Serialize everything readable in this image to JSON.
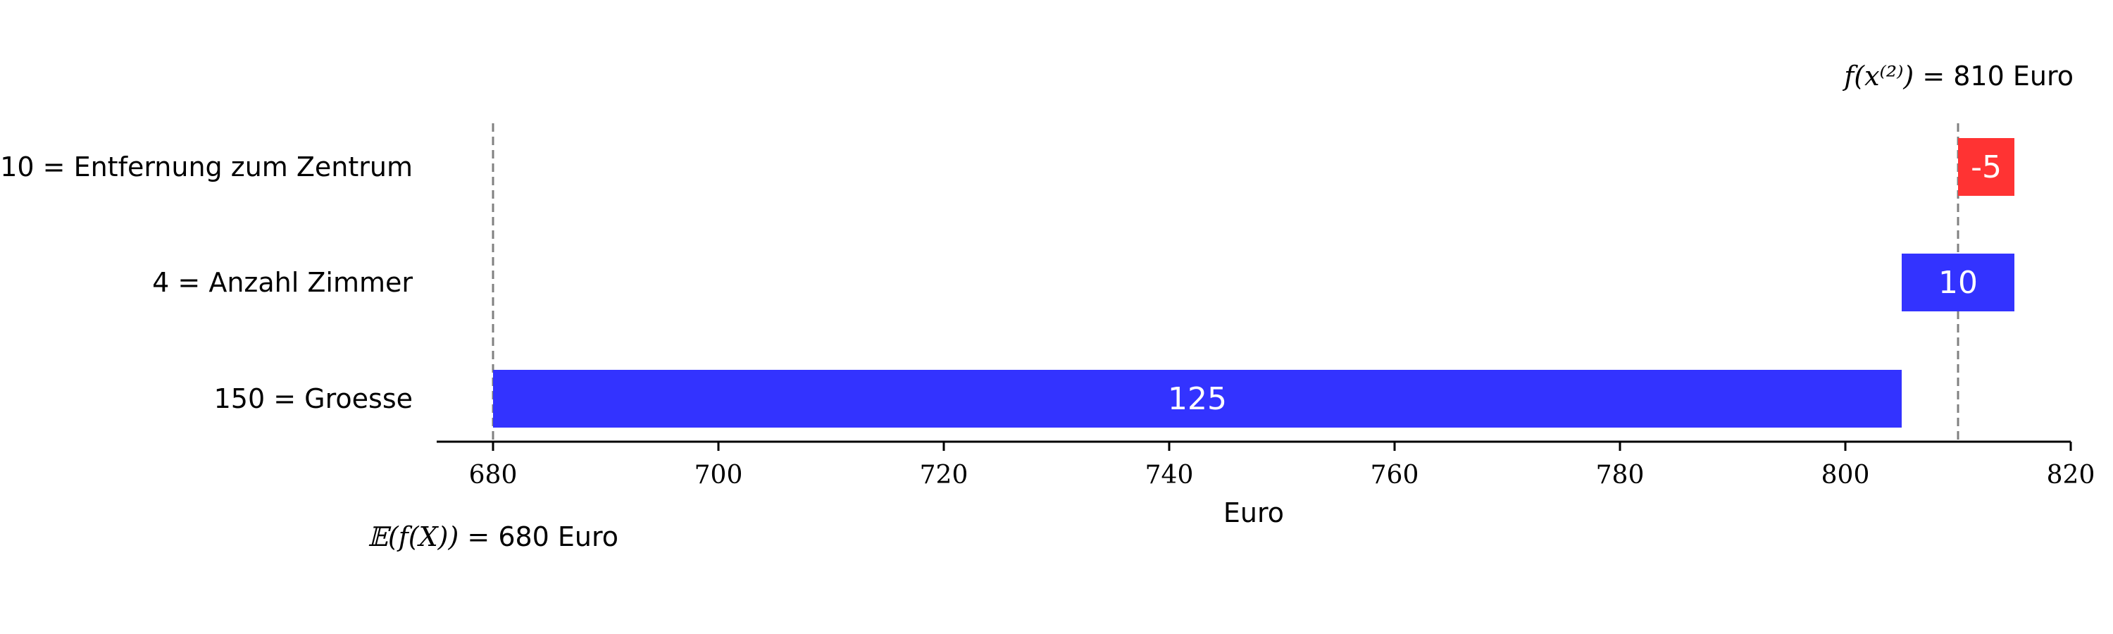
{
  "chart_data": {
    "type": "bar",
    "orientation": "horizontal",
    "subtype": "waterfall",
    "categories": [
      "10 = Entfernung zum Zentrum",
      "4 = Anzahl Zimmer",
      "150 = Groesse"
    ],
    "values": [
      -5,
      10,
      125
    ],
    "value_labels": [
      "-5",
      "10",
      "125"
    ],
    "bar_start": [
      810,
      805,
      680
    ],
    "bar_end": [
      815,
      815,
      805
    ],
    "xlabel": "Euro",
    "ylabel": "",
    "title": "",
    "xlim": [
      675,
      820
    ],
    "xticks": [
      680,
      700,
      720,
      740,
      760,
      780,
      800,
      820
    ],
    "xtick_labels": [
      "680",
      "700",
      "720",
      "740",
      "760",
      "780",
      "800",
      "820"
    ],
    "reference_lines": [
      680,
      810
    ],
    "colors": {
      "positive": "#3333ff",
      "negative": "#ff3333",
      "reference": "#808080"
    },
    "annotations": {
      "prediction": {
        "math": "f(x⁽²⁾) = ",
        "text": "810 Euro"
      },
      "expected": {
        "math": "𝔼(f(X)) = ",
        "text": "680 Euro"
      }
    },
    "grid": false,
    "legend": "none"
  }
}
